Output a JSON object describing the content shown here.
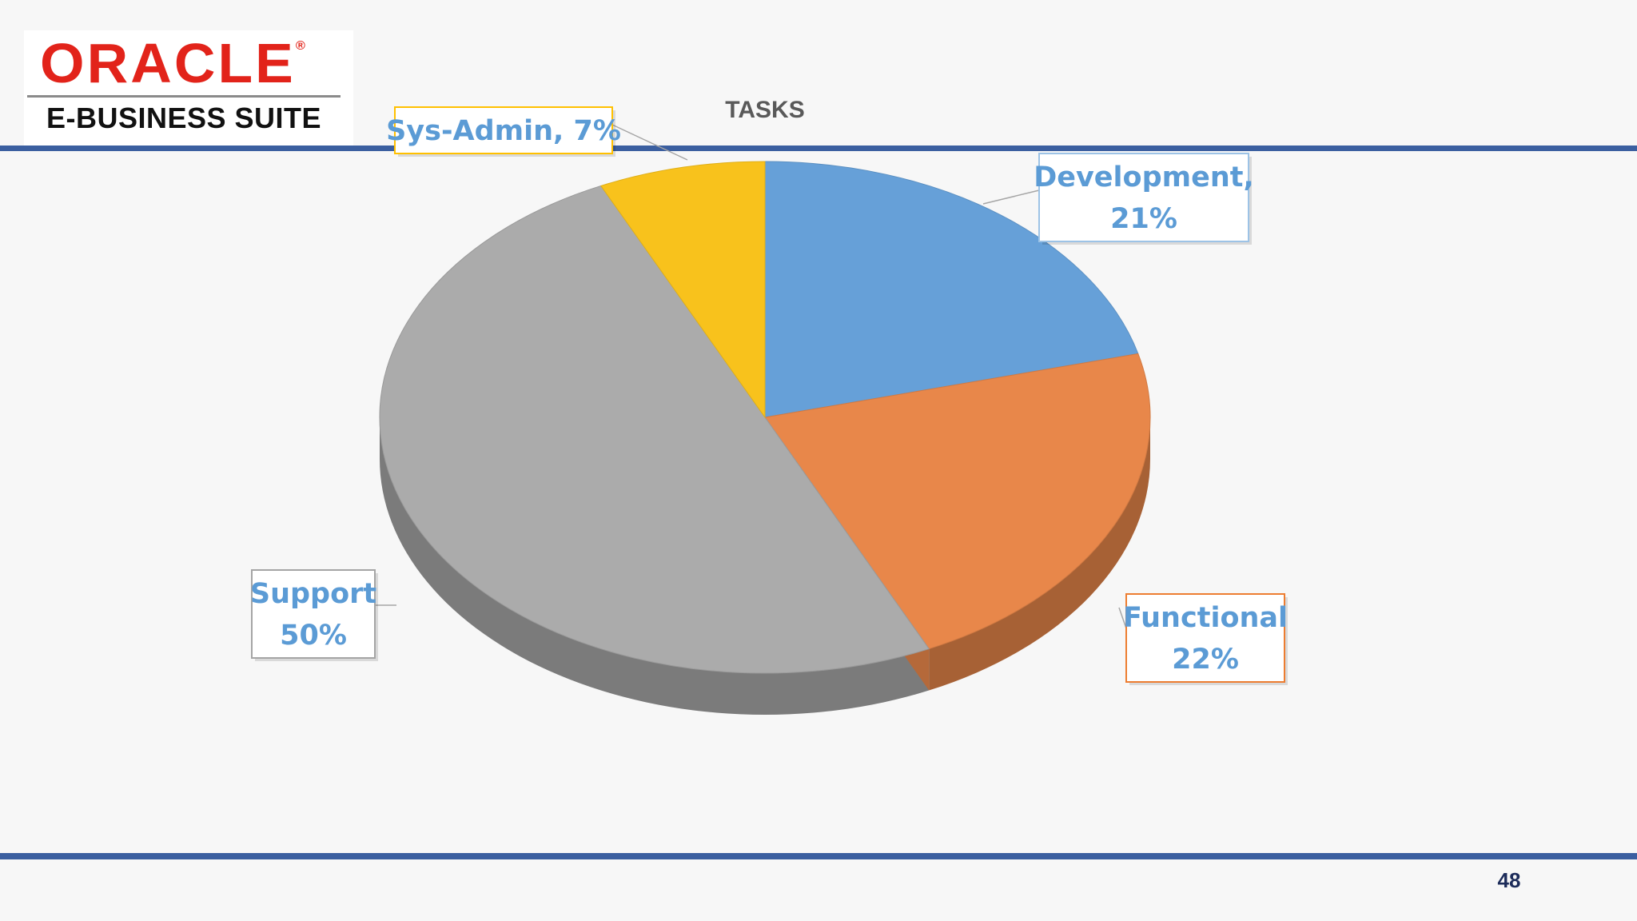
{
  "logo": {
    "brand": "ORACLE",
    "reg": "®",
    "product": "E-BUSINESS SUITE"
  },
  "page_number": "48",
  "colors": {
    "band": "#3b5fa0",
    "brand": "#e2231a",
    "label_text": "#5b9bd5"
  },
  "chart_data": {
    "type": "pie",
    "title": "TASKS",
    "style": "3d",
    "slices": [
      {
        "name": "Development",
        "value": 21,
        "color": "#66a0d8",
        "label": [
          "Development,",
          "21%"
        ],
        "label_border": "#9dc3e6"
      },
      {
        "name": "Functional",
        "value": 22,
        "color": "#e8874a",
        "label": [
          "Functional",
          "22%"
        ],
        "label_border": "#ed7d31"
      },
      {
        "name": "Support",
        "value": 50,
        "color": "#ababab",
        "label": [
          "Support",
          "50%"
        ],
        "label_border": "#a5a5a5"
      },
      {
        "name": "Sys-Admin",
        "value": 7,
        "color": "#f8c21c",
        "label": [
          "Sys-Admin, 7%"
        ],
        "label_border": "#ffc000"
      }
    ]
  }
}
